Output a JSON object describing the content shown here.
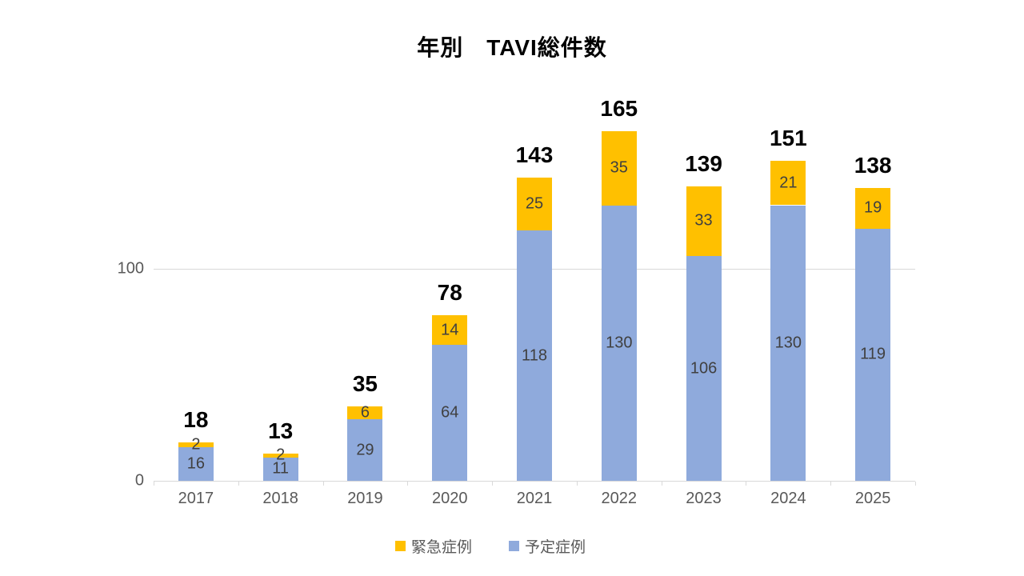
{
  "title": "年別　TAVI総件数",
  "legend": {
    "items": [
      {
        "key": "emergency",
        "label": "緊急症例"
      },
      {
        "key": "planned",
        "label": "予定症例"
      }
    ]
  },
  "colors": {
    "emergency": "#FFC000",
    "planned": "#8FAADC",
    "gridline": "#D9D9D9",
    "axis_label": "#595959",
    "segment_label": "#404040",
    "total_label": "#000000"
  },
  "chart_data": {
    "type": "bar",
    "stacked": true,
    "title": "年別　TAVI総件数",
    "categories": [
      "2017",
      "2018",
      "2019",
      "2020",
      "2021",
      "2022",
      "2023",
      "2024",
      "2025"
    ],
    "series": [
      {
        "name": "予定症例",
        "key": "planned",
        "values": [
          16,
          11,
          29,
          64,
          118,
          130,
          106,
          130,
          119
        ]
      },
      {
        "name": "緊急症例",
        "key": "emergency",
        "values": [
          2,
          2,
          6,
          14,
          25,
          35,
          33,
          21,
          19
        ]
      }
    ],
    "totals": [
      18,
      13,
      35,
      78,
      143,
      165,
      139,
      151,
      138
    ],
    "y_axis": {
      "ticks": [
        {
          "value": 0,
          "label": "0"
        },
        {
          "value": 100,
          "label": "100"
        }
      ]
    },
    "legend_position": "bottom",
    "grid": "horizontal-at-100-only"
  }
}
